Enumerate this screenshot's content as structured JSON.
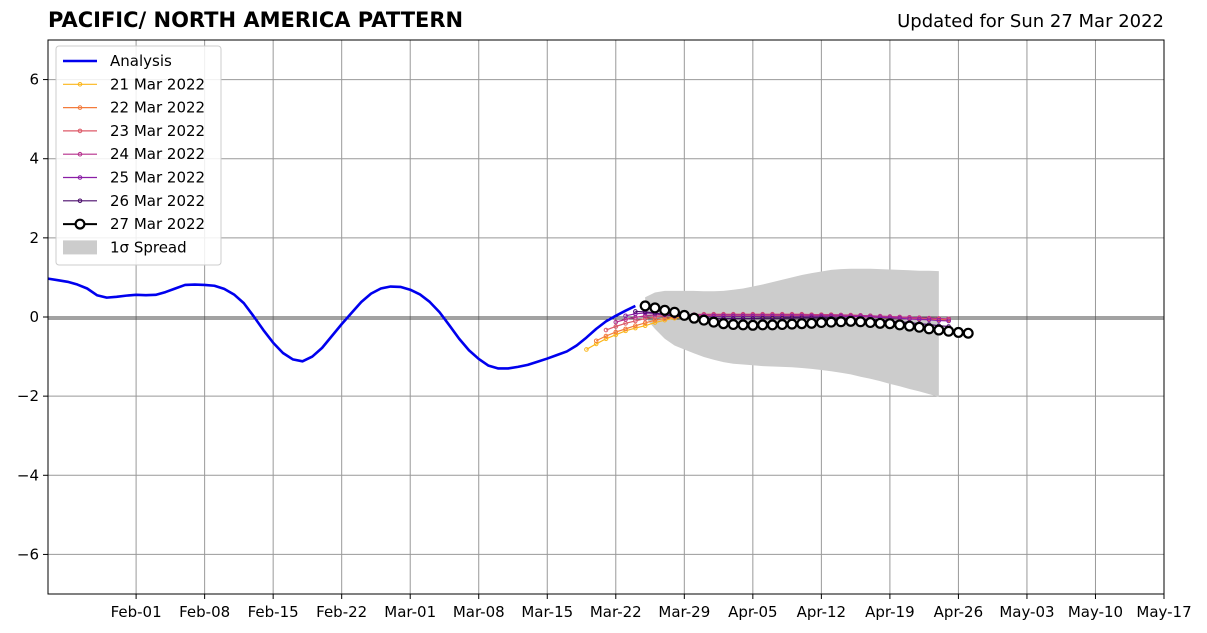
{
  "header": {
    "title": "PACIFIC/ NORTH AMERICA PATTERN",
    "updated": "Updated for Sun 27 Mar 2022"
  },
  "chart_data": {
    "type": "line",
    "title": "PACIFIC/ NORTH AMERICA PATTERN",
    "subtitle": "Updated for Sun 27 Mar 2022",
    "xlabel": "",
    "ylabel": "",
    "x_start_date": "2022-01-23",
    "xlim": [
      "2022-01-23",
      "2022-05-17"
    ],
    "ylim": [
      -7,
      7
    ],
    "xticks": [
      {
        "date": "2022-02-01",
        "label": "Feb-01"
      },
      {
        "date": "2022-02-08",
        "label": "Feb-08"
      },
      {
        "date": "2022-02-15",
        "label": "Feb-15"
      },
      {
        "date": "2022-02-22",
        "label": "Feb-22"
      },
      {
        "date": "2022-03-01",
        "label": "Mar-01"
      },
      {
        "date": "2022-03-08",
        "label": "Mar-08"
      },
      {
        "date": "2022-03-15",
        "label": "Mar-15"
      },
      {
        "date": "2022-03-22",
        "label": "Mar-22"
      },
      {
        "date": "2022-03-29",
        "label": "Mar-29"
      },
      {
        "date": "2022-04-05",
        "label": "Apr-05"
      },
      {
        "date": "2022-04-12",
        "label": "Apr-12"
      },
      {
        "date": "2022-04-19",
        "label": "Apr-19"
      },
      {
        "date": "2022-04-26",
        "label": "Apr-26"
      },
      {
        "date": "2022-05-03",
        "label": "May-03"
      },
      {
        "date": "2022-05-10",
        "label": "May-10"
      },
      {
        "date": "2022-05-17",
        "label": "May-17"
      }
    ],
    "yticks": [
      {
        "value": -6,
        "label": "−6"
      },
      {
        "value": -4,
        "label": "−4"
      },
      {
        "value": -2,
        "label": "−2"
      },
      {
        "value": 0,
        "label": "0"
      },
      {
        "value": 2,
        "label": "2"
      },
      {
        "value": 4,
        "label": "4"
      },
      {
        "value": 6,
        "label": "6"
      }
    ],
    "grid": true,
    "zero_line": true,
    "legend_position": "top-left",
    "analysis": {
      "name": "Analysis",
      "color": "#0000ee",
      "start_day": 0,
      "values": [
        0.97,
        0.93,
        0.89,
        0.82,
        0.72,
        0.55,
        0.49,
        0.51,
        0.54,
        0.56,
        0.55,
        0.56,
        0.63,
        0.72,
        0.81,
        0.82,
        0.81,
        0.79,
        0.71,
        0.57,
        0.35,
        0.02,
        -0.33,
        -0.65,
        -0.91,
        -1.07,
        -1.12,
        -1.0,
        -0.78,
        -0.48,
        -0.18,
        0.1,
        0.38,
        0.59,
        0.72,
        0.77,
        0.76,
        0.69,
        0.57,
        0.38,
        0.12,
        -0.21,
        -0.55,
        -0.84,
        -1.06,
        -1.23,
        -1.3,
        -1.3,
        -1.26,
        -1.21,
        -1.13,
        -1.05,
        -0.96,
        -0.87,
        -0.72,
        -0.52,
        -0.3,
        -0.11,
        0.03,
        0.16,
        0.28
      ]
    },
    "spread": {
      "name": "1σ Spread",
      "color": "#cccccc",
      "start_day": 61,
      "upper": [
        0.5,
        0.62,
        0.66,
        0.66,
        0.66,
        0.66,
        0.65,
        0.65,
        0.66,
        0.69,
        0.72,
        0.77,
        0.82,
        0.88,
        0.94,
        1.0,
        1.06,
        1.11,
        1.15,
        1.19,
        1.21,
        1.22,
        1.22,
        1.22,
        1.21,
        1.2,
        1.19,
        1.18,
        1.17,
        1.17,
        1.16
      ],
      "lower": [
        -0.01,
        -0.3,
        -0.55,
        -0.72,
        -0.82,
        -0.92,
        -1.01,
        -1.08,
        -1.14,
        -1.18,
        -1.2,
        -1.22,
        -1.24,
        -1.25,
        -1.26,
        -1.27,
        -1.29,
        -1.31,
        -1.34,
        -1.37,
        -1.41,
        -1.45,
        -1.51,
        -1.56,
        -1.62,
        -1.69,
        -1.75,
        -1.82,
        -1.88,
        -1.95,
        -2.02
      ]
    },
    "series": [
      {
        "name": "21 Mar 2022",
        "color": "#fbb61a",
        "start_day": 55,
        "values": [
          -0.82,
          -0.68,
          -0.55,
          -0.45,
          -0.35,
          -0.28,
          -0.22,
          -0.14,
          -0.08,
          -0.03,
          0.0,
          0.02,
          0.03,
          0.04,
          0.05,
          0.05,
          0.05,
          0.05,
          0.05,
          0.04,
          0.04,
          0.04,
          0.04,
          0.03,
          0.03,
          0.02,
          0.02,
          0.01,
          0.0,
          0.0,
          -0.01,
          -0.02,
          -0.03,
          -0.03,
          -0.04,
          -0.05,
          -0.06,
          -0.07
        ]
      },
      {
        "name": "22 Mar 2022",
        "color": "#f37b3c",
        "start_day": 56,
        "values": [
          -0.6,
          -0.48,
          -0.38,
          -0.3,
          -0.22,
          -0.15,
          -0.08,
          -0.04,
          0.0,
          0.02,
          0.03,
          0.04,
          0.05,
          0.05,
          0.05,
          0.05,
          0.05,
          0.05,
          0.05,
          0.04,
          0.04,
          0.04,
          0.04,
          0.03,
          0.03,
          0.02,
          0.01,
          0.0,
          0.0,
          -0.01,
          -0.02,
          -0.03,
          -0.04,
          -0.05,
          -0.06,
          -0.07,
          -0.08
        ]
      },
      {
        "name": "23 Mar 2022",
        "color": "#dd5a68",
        "start_day": 57,
        "values": [
          -0.33,
          -0.24,
          -0.16,
          -0.1,
          -0.04,
          0.0,
          0.03,
          0.05,
          0.06,
          0.06,
          0.07,
          0.07,
          0.07,
          0.07,
          0.07,
          0.07,
          0.07,
          0.07,
          0.07,
          0.07,
          0.07,
          0.06,
          0.06,
          0.06,
          0.05,
          0.05,
          0.04,
          0.03,
          0.02,
          0.01,
          0.0,
          -0.01,
          -0.02,
          -0.03,
          -0.04,
          -0.05
        ]
      },
      {
        "name": "24 Mar 2022",
        "color": "#b52f8c",
        "start_day": 58,
        "values": [
          -0.13,
          -0.06,
          -0.01,
          0.03,
          0.05,
          0.06,
          0.06,
          0.06,
          0.06,
          0.06,
          0.06,
          0.06,
          0.06,
          0.06,
          0.06,
          0.06,
          0.06,
          0.06,
          0.06,
          0.06,
          0.05,
          0.05,
          0.05,
          0.05,
          0.04,
          0.04,
          0.03,
          0.02,
          0.01,
          0.0,
          -0.01,
          -0.02,
          -0.03,
          -0.04,
          -0.05
        ]
      },
      {
        "name": "25 Mar 2022",
        "color": "#8a1ea6",
        "start_day": 59,
        "values": [
          0.03,
          0.08,
          0.1,
          0.09,
          0.06,
          0.03,
          0.02,
          0.02,
          0.02,
          0.02,
          0.02,
          0.02,
          0.02,
          0.02,
          0.02,
          0.02,
          0.02,
          0.02,
          0.02,
          0.02,
          0.02,
          0.02,
          0.02,
          0.01,
          0.01,
          0.0,
          -0.01,
          -0.02,
          -0.03,
          -0.05,
          -0.06,
          -0.07,
          -0.09,
          -0.1
        ]
      },
      {
        "name": "26 Mar 2022",
        "color": "#4a0c6b",
        "start_day": 60,
        "values": [
          0.14,
          0.13,
          0.1,
          0.06,
          0.02,
          0.0,
          -0.02,
          -0.03,
          -0.04,
          -0.04,
          -0.04,
          -0.04,
          -0.04,
          -0.03,
          -0.03,
          -0.03,
          -0.02,
          -0.02,
          -0.02,
          -0.02,
          -0.03,
          -0.03,
          -0.04,
          -0.05,
          -0.06,
          -0.08,
          -0.1,
          -0.12,
          -0.14,
          -0.17,
          -0.19,
          -0.22,
          -0.24
        ]
      },
      {
        "name": "27 Mar 2022",
        "color": "#000000",
        "start_day": 61,
        "marker": "open-circle",
        "values": [
          0.28,
          0.23,
          0.17,
          0.12,
          0.04,
          -0.03,
          -0.08,
          -0.13,
          -0.17,
          -0.19,
          -0.2,
          -0.21,
          -0.2,
          -0.2,
          -0.19,
          -0.18,
          -0.17,
          -0.16,
          -0.14,
          -0.13,
          -0.12,
          -0.11,
          -0.12,
          -0.14,
          -0.16,
          -0.17,
          -0.2,
          -0.23,
          -0.26,
          -0.3,
          -0.33,
          -0.36,
          -0.39,
          -0.41
        ]
      }
    ]
  }
}
